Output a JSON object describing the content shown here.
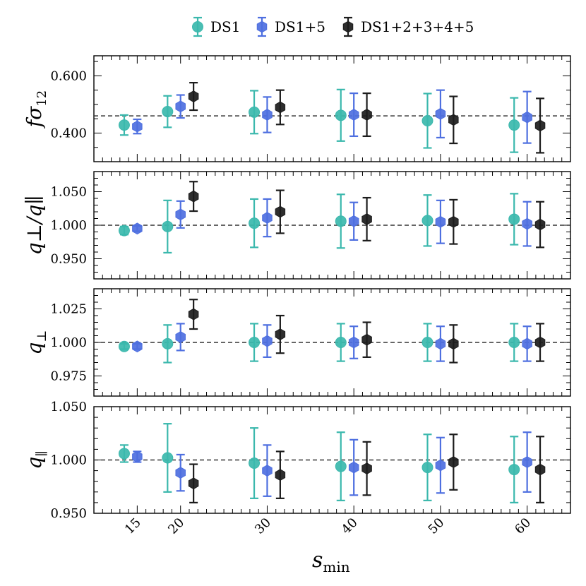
{
  "chart_data": {
    "type": "scatter",
    "xlabel": "s_min",
    "x_ticks": [
      15,
      20,
      30,
      40,
      50,
      60
    ],
    "xlim": [
      10,
      65
    ],
    "legend": {
      "placement": "top-center",
      "entries": [
        "DS1",
        "DS1+5",
        "DS1+2+3+4+5"
      ]
    },
    "series_styles": [
      {
        "name": "DS1",
        "color": "#3bb8ad",
        "marker": "circle",
        "offset": -1.5
      },
      {
        "name": "DS1+5",
        "color": "#4e6fe0",
        "marker": "hexagon",
        "offset": 0.0
      },
      {
        "name": "DS1+2+3+4+5",
        "color": "#1c1c1c",
        "marker": "hexagon",
        "offset": 1.5
      }
    ],
    "panels": [
      {
        "id": "fsigma12",
        "ylabel": "fσ",
        "ylabel_sub": "12",
        "ylim": [
          0.3,
          0.67
        ],
        "yticks": [
          0.4,
          0.6
        ],
        "ytick_labels": [
          "0.400",
          "0.600"
        ],
        "minor_step": 0.05,
        "reference": 0.46,
        "series": [
          {
            "name": "DS1",
            "x": [
              15,
              20,
              30,
              40,
              50,
              60
            ],
            "y": [
              0.428,
              0.475,
              0.473,
              0.462,
              0.443,
              0.428
            ],
            "err": [
              0.035,
              0.055,
              0.075,
              0.09,
              0.095,
              0.095
            ]
          },
          {
            "name": "DS1+5",
            "x": [
              15,
              20,
              30,
              40,
              50,
              60
            ],
            "y": [
              0.423,
              0.493,
              0.464,
              0.464,
              0.467,
              0.455
            ],
            "err": [
              0.025,
              0.04,
              0.062,
              0.075,
              0.083,
              0.09
            ]
          },
          {
            "name": "DS1+2+3+4+5",
            "x": [
              20,
              30,
              40,
              50,
              60
            ],
            "y": [
              0.528,
              0.49,
              0.464,
              0.446,
              0.426
            ],
            "err": [
              0.048,
              0.06,
              0.075,
              0.082,
              0.095
            ]
          }
        ]
      },
      {
        "id": "qratio",
        "ylabel": "q⊥/q∥",
        "ylabel_sub": "",
        "ylim": [
          0.92,
          1.08
        ],
        "yticks": [
          0.95,
          1.0,
          1.05
        ],
        "ytick_labels": [
          "0.950",
          "1.000",
          "1.050"
        ],
        "minor_step": 0.01,
        "reference": 1.0,
        "series": [
          {
            "name": "DS1",
            "x": [
              15,
              20,
              30,
              40,
              50,
              60
            ],
            "y": [
              0.992,
              0.998,
              1.003,
              1.006,
              1.007,
              1.009
            ],
            "err": [
              0.006,
              0.039,
              0.036,
              0.04,
              0.038,
              0.038
            ]
          },
          {
            "name": "DS1+5",
            "x": [
              15,
              20,
              30,
              40,
              50,
              60
            ],
            "y": [
              0.995,
              1.016,
              1.011,
              1.006,
              1.005,
              1.002
            ],
            "err": [
              0.004,
              0.02,
              0.028,
              0.028,
              0.032,
              0.033
            ]
          },
          {
            "name": "DS1+2+3+4+5",
            "x": [
              20,
              30,
              40,
              50,
              60
            ],
            "y": [
              1.043,
              1.02,
              1.009,
              1.005,
              1.001
            ],
            "err": [
              0.022,
              0.032,
              0.032,
              0.033,
              0.034
            ]
          }
        ]
      },
      {
        "id": "qperp",
        "ylabel": "q",
        "ylabel_sub": "⊥",
        "ylim": [
          0.96,
          1.04
        ],
        "yticks": [
          0.975,
          1.0,
          1.025
        ],
        "ytick_labels": [
          "0.975",
          "1.000",
          "1.025"
        ],
        "minor_step": 0.005,
        "reference": 1.0,
        "series": [
          {
            "name": "DS1",
            "x": [
              15,
              20,
              30,
              40,
              50,
              60
            ],
            "y": [
              0.997,
              0.999,
              1.0,
              1.0,
              1.0,
              1.0
            ],
            "err": [
              0.002,
              0.014,
              0.014,
              0.014,
              0.014,
              0.014
            ]
          },
          {
            "name": "DS1+5",
            "x": [
              15,
              20,
              30,
              40,
              50,
              60
            ],
            "y": [
              0.997,
              1.004,
              1.001,
              1.0,
              0.999,
              0.999
            ],
            "err": [
              0.002,
              0.01,
              0.012,
              0.012,
              0.013,
              0.013
            ]
          },
          {
            "name": "DS1+2+3+4+5",
            "x": [
              20,
              30,
              40,
              50,
              60
            ],
            "y": [
              1.021,
              1.006,
              1.002,
              0.999,
              1.0
            ],
            "err": [
              0.011,
              0.014,
              0.013,
              0.014,
              0.014
            ]
          }
        ]
      },
      {
        "id": "qpar",
        "ylabel": "q",
        "ylabel_sub": "∥",
        "ylim": [
          0.95,
          1.05
        ],
        "yticks": [
          0.95,
          1.0,
          1.05
        ],
        "ytick_labels": [
          "0.950",
          "1.000",
          "1.050"
        ],
        "minor_step": 0.01,
        "reference": 1.0,
        "series": [
          {
            "name": "DS1",
            "x": [
              15,
              20,
              30,
              40,
              50,
              60
            ],
            "y": [
              1.006,
              1.002,
              0.997,
              0.994,
              0.993,
              0.991
            ],
            "err": [
              0.008,
              0.032,
              0.033,
              0.032,
              0.031,
              0.031
            ]
          },
          {
            "name": "DS1+5",
            "x": [
              15,
              20,
              30,
              40,
              50,
              60
            ],
            "y": [
              1.003,
              0.988,
              0.99,
              0.993,
              0.995,
              0.998
            ],
            "err": [
              0.005,
              0.017,
              0.024,
              0.026,
              0.026,
              0.028
            ]
          },
          {
            "name": "DS1+2+3+4+5",
            "x": [
              20,
              30,
              40,
              50,
              60
            ],
            "y": [
              0.978,
              0.986,
              0.992,
              0.998,
              0.991
            ],
            "err": [
              0.018,
              0.022,
              0.025,
              0.026,
              0.031
            ]
          }
        ]
      }
    ]
  }
}
